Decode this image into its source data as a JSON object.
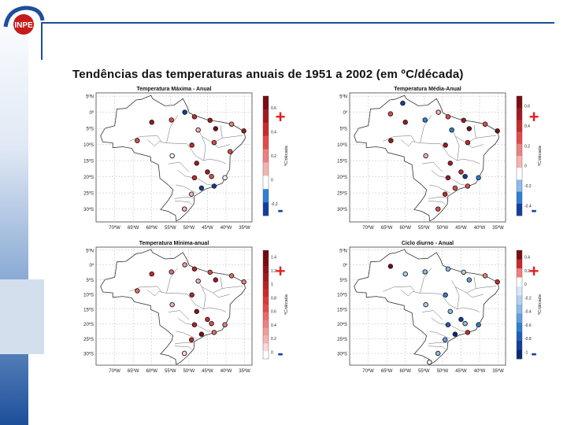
{
  "logo": {
    "text": "INPE"
  },
  "slide_title": "Tendências das temperaturas anuais de 1951 a 2002 (em ºC/década)",
  "chart_data": [
    {
      "type": "scatter",
      "title": "Temperatura Máxima - Anual",
      "lat_labels": [
        "5ºN",
        "0º",
        "5ºS",
        "10ºS",
        "15ºS",
        "20ºS",
        "25ºS",
        "30ºS"
      ],
      "lon_labels": [
        "70ºW",
        "65ºW",
        "60ºW",
        "55ºW",
        "50ºW",
        "45ºW",
        "40ºW",
        "35ºW"
      ],
      "colorbar": {
        "label": "ºC/década",
        "ticks": [
          "0.6",
          "0.4",
          "0.2",
          "0",
          "-0.2"
        ],
        "colors": [
          "#7a0d12",
          "#a11a1f",
          "#c92a2a",
          "#e34a4a",
          "#ef7f7f",
          "#f6b2b2",
          "#ffffff",
          "#2f7fd6",
          "#123f9c"
        ]
      },
      "signs": {
        "plus": "+",
        "minus": "-"
      },
      "stations": [
        {
          "lon": -60.0,
          "lat": -3.1,
          "trend": 0.5
        },
        {
          "lon": -54.7,
          "lat": -2.4,
          "trend": 0.3
        },
        {
          "lon": -48.5,
          "lat": -1.4,
          "trend": 0.35
        },
        {
          "lon": -51.1,
          "lat": 0.0,
          "trend": -0.3
        },
        {
          "lon": -44.3,
          "lat": -2.5,
          "trend": 0.45
        },
        {
          "lon": -38.5,
          "lat": -3.7,
          "trend": 0.2
        },
        {
          "lon": -35.2,
          "lat": -5.8,
          "trend": 0.5
        },
        {
          "lon": -42.8,
          "lat": -5.1,
          "trend": 0.55
        },
        {
          "lon": -47.5,
          "lat": -5.5,
          "trend": 0.1
        },
        {
          "lon": -63.9,
          "lat": -8.8,
          "trend": 0.3
        },
        {
          "lon": -49.2,
          "lat": -10.2,
          "trend": 0.35
        },
        {
          "lon": -43.2,
          "lat": -9.4,
          "trend": 0.25
        },
        {
          "lon": -38.9,
          "lat": -12.2,
          "trend": 0.3
        },
        {
          "lon": -47.9,
          "lat": -15.8,
          "trend": 0.5
        },
        {
          "lon": -45.0,
          "lat": -18.5,
          "trend": 0.45
        },
        {
          "lon": -48.5,
          "lat": -20.3,
          "trend": 0.4
        },
        {
          "lon": -43.9,
          "lat": -19.9,
          "trend": 0.3
        },
        {
          "lon": -46.6,
          "lat": -23.5,
          "trend": -0.4
        },
        {
          "lon": -43.2,
          "lat": -22.9,
          "trend": -0.2
        },
        {
          "lon": -49.3,
          "lat": -25.4,
          "trend": 0.15
        },
        {
          "lon": -51.2,
          "lat": -30.0,
          "trend": 0.1
        },
        {
          "lon": -54.5,
          "lat": -13.5,
          "trend": 0.0
        },
        {
          "lon": -40.3,
          "lat": -20.3,
          "trend": 0.05
        }
      ]
    },
    {
      "type": "scatter",
      "title": "Temperatura Média-Anual",
      "lat_labels": [
        "5ºN",
        "0º",
        "5ºS",
        "10ºS",
        "15ºS",
        "20ºS",
        "25ºS",
        "30ºS"
      ],
      "lon_labels": [
        "70ºW",
        "65ºW",
        "60ºW",
        "55ºW",
        "50ºW",
        "45ºW",
        "40ºW",
        "35ºW"
      ],
      "colorbar": {
        "label": "ºC/década",
        "ticks": [
          "0.6",
          "0.4",
          "0.2",
          "0",
          "-0.2",
          "-0.4"
        ],
        "colors": [
          "#7a0d12",
          "#a11a1f",
          "#c92a2a",
          "#e34a4a",
          "#ef7f7f",
          "#f6b2b2",
          "#ffffff",
          "#8cbbe8",
          "#2f7fd6",
          "#123f9c"
        ]
      },
      "signs": {
        "plus": "+",
        "minus": "-"
      },
      "stations": [
        {
          "lon": -60.7,
          "lat": 2.8,
          "trend": -0.4
        },
        {
          "lon": -64.0,
          "lat": -0.5,
          "trend": 0.3
        },
        {
          "lon": -60.0,
          "lat": -3.1,
          "trend": 0.4
        },
        {
          "lon": -54.7,
          "lat": -2.4,
          "trend": -0.25
        },
        {
          "lon": -48.5,
          "lat": -1.4,
          "trend": 0.3
        },
        {
          "lon": -51.1,
          "lat": 0.0,
          "trend": 0.1
        },
        {
          "lon": -44.3,
          "lat": -2.5,
          "trend": 0.45
        },
        {
          "lon": -35.2,
          "lat": -5.8,
          "trend": 0.5
        },
        {
          "lon": -38.5,
          "lat": -3.7,
          "trend": 0.3
        },
        {
          "lon": -42.8,
          "lat": -5.1,
          "trend": 0.5
        },
        {
          "lon": -47.5,
          "lat": -5.5,
          "trend": -0.2
        },
        {
          "lon": -49.2,
          "lat": -10.2,
          "trend": 0.45
        },
        {
          "lon": -63.9,
          "lat": -8.8,
          "trend": 0.4
        },
        {
          "lon": -43.2,
          "lat": -9.4,
          "trend": 0.35
        },
        {
          "lon": -47.9,
          "lat": -15.8,
          "trend": 0.4
        },
        {
          "lon": -45.0,
          "lat": -18.5,
          "trend": 0.35
        },
        {
          "lon": -48.5,
          "lat": -20.3,
          "trend": 0.45
        },
        {
          "lon": -43.9,
          "lat": -19.9,
          "trend": -0.3
        },
        {
          "lon": -46.6,
          "lat": -23.5,
          "trend": 0.3
        },
        {
          "lon": -43.2,
          "lat": -22.9,
          "trend": 0.2
        },
        {
          "lon": -49.3,
          "lat": -25.4,
          "trend": 0.35
        },
        {
          "lon": -51.2,
          "lat": -30.0,
          "trend": 0.3
        },
        {
          "lon": -40.3,
          "lat": -20.3,
          "trend": -0.2
        },
        {
          "lon": -54.5,
          "lat": -13.5,
          "trend": 0.05
        }
      ]
    },
    {
      "type": "scatter",
      "title": "Temperatura Mínima-anual",
      "lat_labels": [
        "5ºN",
        "0º",
        "5ºS",
        "10ºS",
        "15ºS",
        "20ºS",
        "25ºS",
        "30ºS"
      ],
      "lon_labels": [
        "70ºW",
        "65ºW",
        "60ºW",
        "55ºW",
        "50ºW",
        "45ºW",
        "40ºW",
        "35ºW"
      ],
      "colorbar": {
        "label": "ºC/década",
        "ticks": [
          "1.4",
          "1.2",
          "1",
          "0.8",
          "0.6",
          "0.4",
          "0.2",
          "0"
        ],
        "colors": [
          "#6e0b10",
          "#7a0d12",
          "#8e1418",
          "#a11a1f",
          "#b82226",
          "#c92a2a",
          "#d93a3a",
          "#e34a4a",
          "#ea6a6a",
          "#ef7f7f",
          "#f39c9c",
          "#f6b2b2",
          "#fbd8d8",
          "#ffffff"
        ]
      },
      "signs": {
        "plus": "+",
        "minus": "-"
      },
      "stations": [
        {
          "lon": -60.0,
          "lat": -3.1,
          "trend": 0.8
        },
        {
          "lon": -54.7,
          "lat": -2.4,
          "trend": 0.6
        },
        {
          "lon": -48.5,
          "lat": -1.4,
          "trend": 0.9
        },
        {
          "lon": -51.1,
          "lat": 0.0,
          "trend": 0.4
        },
        {
          "lon": -44.3,
          "lat": -2.5,
          "trend": 0.7
        },
        {
          "lon": -38.5,
          "lat": -3.7,
          "trend": 0.6
        },
        {
          "lon": -35.2,
          "lat": -5.8,
          "trend": 0.5
        },
        {
          "lon": -42.8,
          "lat": -5.1,
          "trend": 1.0
        },
        {
          "lon": -47.5,
          "lat": -5.5,
          "trend": 0.3
        },
        {
          "lon": -63.9,
          "lat": -8.8,
          "trend": 0.6
        },
        {
          "lon": -49.2,
          "lat": -10.2,
          "trend": 0.9
        },
        {
          "lon": -47.9,
          "lat": -15.8,
          "trend": 1.1
        },
        {
          "lon": -45.0,
          "lat": -18.5,
          "trend": 0.8
        },
        {
          "lon": -48.5,
          "lat": -20.3,
          "trend": 0.9
        },
        {
          "lon": -43.9,
          "lat": -19.9,
          "trend": 0.7
        },
        {
          "lon": -46.6,
          "lat": -23.5,
          "trend": 1.2
        },
        {
          "lon": -43.2,
          "lat": -22.9,
          "trend": 0.6
        },
        {
          "lon": -49.3,
          "lat": -25.4,
          "trend": 0.8
        },
        {
          "lon": -51.2,
          "lat": -30.0,
          "trend": 0.2
        },
        {
          "lon": -40.3,
          "lat": -20.3,
          "trend": 0.5
        },
        {
          "lon": -54.5,
          "lat": -13.5,
          "trend": 0.3
        }
      ]
    },
    {
      "type": "scatter",
      "title": "Ciclo diurno - Anual",
      "lat_labels": [
        "5ºN",
        "0º",
        "5ºS",
        "10ºS",
        "15ºS",
        "20ºS",
        "25ºS",
        "30ºS"
      ],
      "lon_labels": [
        "70ºW",
        "65ºW",
        "60ºW",
        "55ºW",
        "50ºW",
        "45ºW",
        "40ºW",
        "35ºW"
      ],
      "colorbar": {
        "label": "ºC/década",
        "ticks": [
          "0.4",
          "0.2",
          "0",
          "-0.2",
          "-0.4",
          "-0.6",
          "-0.8",
          "-1"
        ],
        "colors": [
          "#7a0d12",
          "#c92a2a",
          "#ef7f7f",
          "#ffffff",
          "#d6e8f7",
          "#b3d2f0",
          "#8cbbe8",
          "#5e9fdf",
          "#2f7fd6",
          "#1d5fb8",
          "#123f9c",
          "#0a2a78"
        ]
      },
      "signs": {
        "plus": "+",
        "minus": "-"
      },
      "stations": [
        {
          "lon": -64.0,
          "lat": -0.5,
          "trend": 0.3
        },
        {
          "lon": -60.0,
          "lat": -3.1,
          "trend": -0.2
        },
        {
          "lon": -54.7,
          "lat": -2.4,
          "trend": -0.3
        },
        {
          "lon": -48.5,
          "lat": -1.4,
          "trend": -0.4
        },
        {
          "lon": -44.3,
          "lat": -2.5,
          "trend": -0.2
        },
        {
          "lon": -38.5,
          "lat": -3.7,
          "trend": 0.1
        },
        {
          "lon": -35.2,
          "lat": -5.8,
          "trend": 0.2
        },
        {
          "lon": -42.8,
          "lat": -5.1,
          "trend": -0.5
        },
        {
          "lon": -49.2,
          "lat": -10.2,
          "trend": -0.6
        },
        {
          "lon": -47.9,
          "lat": -15.8,
          "trend": -0.3
        },
        {
          "lon": -45.0,
          "lat": -18.5,
          "trend": -0.8
        },
        {
          "lon": -48.5,
          "lat": -20.3,
          "trend": -0.7
        },
        {
          "lon": -43.9,
          "lat": -19.9,
          "trend": -0.4
        },
        {
          "lon": -46.6,
          "lat": -23.5,
          "trend": -0.9
        },
        {
          "lon": -43.2,
          "lat": -22.9,
          "trend": 0.2
        },
        {
          "lon": -49.3,
          "lat": -25.4,
          "trend": -0.5
        },
        {
          "lon": -51.2,
          "lat": -30.0,
          "trend": -0.3
        },
        {
          "lon": -40.3,
          "lat": -20.3,
          "trend": -0.6
        },
        {
          "lon": -54.5,
          "lat": -13.5,
          "trend": -0.2
        },
        {
          "lon": -53.5,
          "lat": -33.0,
          "trend": 0.0
        }
      ]
    }
  ]
}
